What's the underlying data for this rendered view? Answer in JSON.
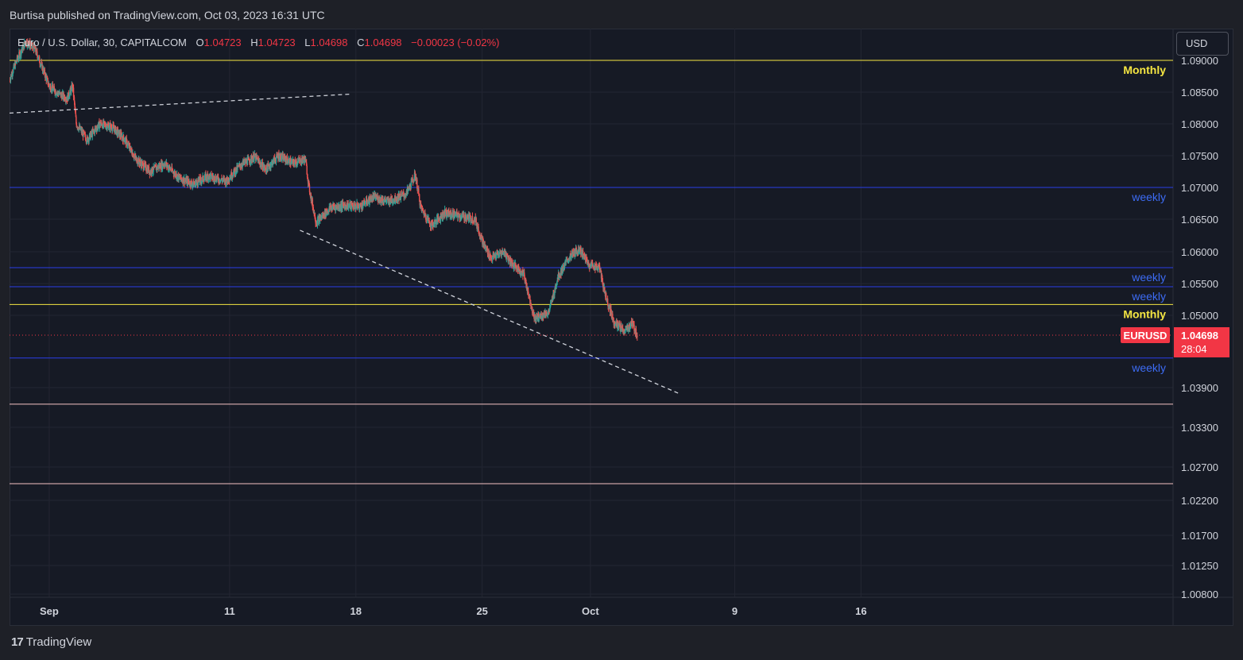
{
  "header": {
    "published": "Burtisa published on TradingView.com, Oct 03, 2023 16:31 UTC"
  },
  "legend": {
    "symbol": "Euro / U.S. Dollar, 30, CAPITALCOM",
    "open_label": "O",
    "open": "1.04723",
    "high_label": "H",
    "high": "1.04723",
    "low_label": "L",
    "low": "1.04698",
    "close_label": "C",
    "close": "1.04698",
    "change": "−0.00023 (−0.02%)"
  },
  "currency_button": "USD",
  "footer": {
    "brand": "TradingView",
    "logo_mark": "17"
  },
  "colors": {
    "background": "#161a25",
    "up": "#26a69a",
    "down": "#ef5350",
    "monthly": "#f5e642",
    "weekly": "#2a3ee8",
    "weekly_text": "#3d6cf5",
    "support": "#f4c2c2",
    "price_tag": "#f23645"
  },
  "chart_data": {
    "type": "candlestick",
    "symbol": "EURUSD",
    "timeframe": "30",
    "last_price": 1.04698,
    "countdown": "28:04",
    "price_tag_label": "EURUSD",
    "y_ticks": [
      1.09,
      1.085,
      1.08,
      1.075,
      1.07,
      1.065,
      1.06,
      1.055,
      1.05,
      1.039,
      1.033,
      1.027,
      1.022,
      1.017,
      1.0125,
      1.008
    ],
    "y_tick_labels": [
      "1.09000",
      "1.08500",
      "1.08000",
      "1.07500",
      "1.07000",
      "1.06500",
      "1.06000",
      "1.05500",
      "1.05000",
      "1.03900",
      "1.03300",
      "1.02700",
      "1.02200",
      "1.01700",
      "1.01250",
      "1.00800"
    ],
    "x_ticks": [
      {
        "label": "Sep",
        "day": 1
      },
      {
        "label": "11",
        "day": 11
      },
      {
        "label": "18",
        "day": 18
      },
      {
        "label": "25",
        "day": 25
      },
      {
        "label": "Oct",
        "day": 31
      },
      {
        "label": "9",
        "day": 39
      },
      {
        "label": "16",
        "day": 46
      }
    ],
    "x_range_days": [
      -1.2,
      63.3
    ],
    "horizontal_levels": [
      {
        "price": 1.09,
        "kind": "monthly",
        "label": "Monthly"
      },
      {
        "price": 1.07,
        "kind": "weekly",
        "label": "weekly"
      },
      {
        "price": 1.0575,
        "kind": "weekly",
        "label": "weekly"
      },
      {
        "price": 1.0545,
        "kind": "weekly",
        "label": "weekly"
      },
      {
        "price": 1.0517,
        "kind": "monthly",
        "label": "Monthly"
      },
      {
        "price": 1.0435,
        "kind": "weekly",
        "label": "weekly"
      },
      {
        "price": 1.0365,
        "kind": "support",
        "label": ""
      },
      {
        "price": 1.0245,
        "kind": "support",
        "label": ""
      }
    ],
    "trendlines": [
      {
        "from": {
          "day": -1.2,
          "price": 1.0817
        },
        "to": {
          "day": 17.8,
          "price": 1.0847
        }
      },
      {
        "from": {
          "day": 14.9,
          "price": 1.0633
        },
        "to": {
          "day": 36.0,
          "price": 1.038
        }
      }
    ],
    "price_path": [
      [
        -1.2,
        1.087
      ],
      [
        -0.8,
        1.09
      ],
      [
        -0.3,
        1.093
      ],
      [
        0.2,
        1.0918
      ],
      [
        0.6,
        1.089
      ],
      [
        1.0,
        1.086
      ],
      [
        1.5,
        1.0848
      ],
      [
        2.0,
        1.084
      ],
      [
        2.3,
        1.086
      ],
      [
        2.5,
        1.08
      ],
      [
        3.1,
        1.0775
      ],
      [
        3.8,
        1.08
      ],
      [
        4.5,
        1.0795
      ],
      [
        5.2,
        1.0775
      ],
      [
        5.8,
        1.0745
      ],
      [
        6.6,
        1.0725
      ],
      [
        7.4,
        1.0738
      ],
      [
        8.2,
        1.0715
      ],
      [
        9.0,
        1.0705
      ],
      [
        9.8,
        1.0718
      ],
      [
        10.8,
        1.071
      ],
      [
        11.6,
        1.0735
      ],
      [
        12.4,
        1.0748
      ],
      [
        13.0,
        1.0728
      ],
      [
        13.7,
        1.075
      ],
      [
        14.5,
        1.0738
      ],
      [
        15.2,
        1.0745
      ],
      [
        15.4,
        1.07
      ],
      [
        15.8,
        1.0645
      ],
      [
        16.6,
        1.0668
      ],
      [
        17.4,
        1.0672
      ],
      [
        18.2,
        1.067
      ],
      [
        19.0,
        1.0685
      ],
      [
        19.8,
        1.0678
      ],
      [
        20.8,
        1.069
      ],
      [
        21.3,
        1.072
      ],
      [
        21.6,
        1.0668
      ],
      [
        22.2,
        1.064
      ],
      [
        22.9,
        1.066
      ],
      [
        23.8,
        1.0655
      ],
      [
        24.6,
        1.065
      ],
      [
        25.1,
        1.061
      ],
      [
        25.5,
        1.059
      ],
      [
        26.2,
        1.06
      ],
      [
        26.7,
        1.058
      ],
      [
        27.3,
        1.0565
      ],
      [
        27.9,
        1.0495
      ],
      [
        28.7,
        1.0505
      ],
      [
        29.2,
        1.056
      ],
      [
        29.8,
        1.059
      ],
      [
        30.4,
        1.0605
      ],
      [
        30.9,
        1.058
      ],
      [
        31.5,
        1.0575
      ],
      [
        31.8,
        1.0535
      ],
      [
        32.3,
        1.049
      ],
      [
        32.9,
        1.0475
      ],
      [
        33.3,
        1.0488
      ],
      [
        33.6,
        1.047
      ]
    ]
  }
}
